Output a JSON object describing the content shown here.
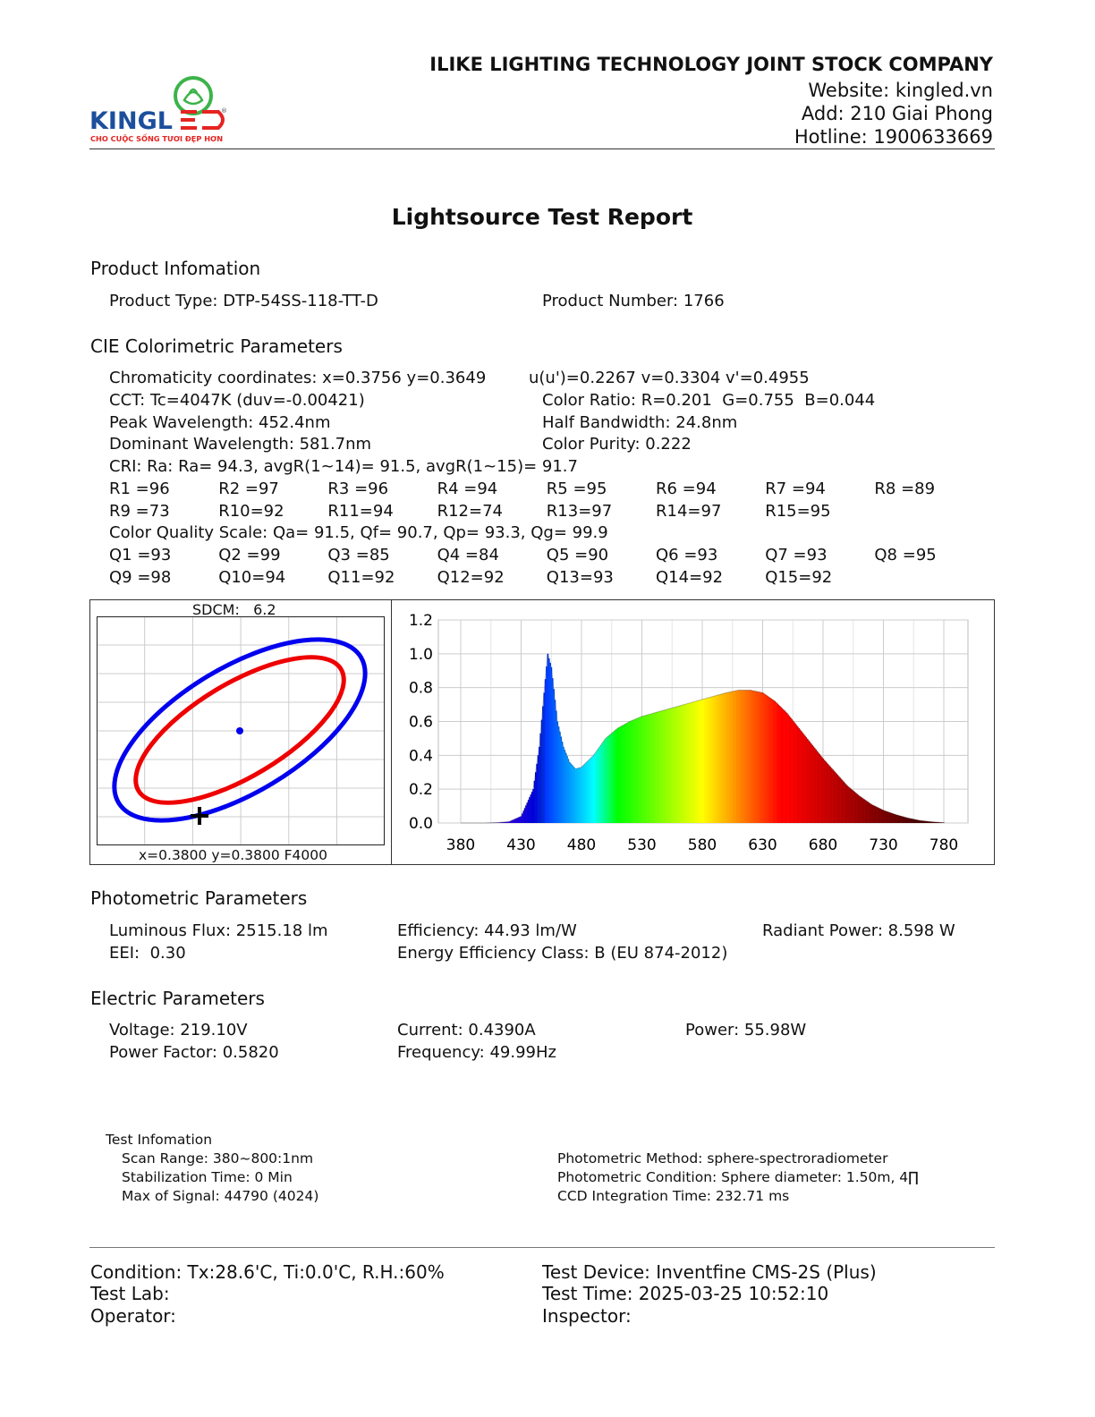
{
  "header": {
    "logo": {
      "brand": "KINGLED",
      "tagline": "CHO CUỘC SỐNG TƯƠI ĐẸP HƠN"
    },
    "company": "ILIKE LIGHTING TECHNOLOGY JOINT STOCK COMPANY",
    "website": "Website: kingled.vn",
    "address": "Add: 210 Giai Phong",
    "hotline": "Hotline: 1900633669"
  },
  "title": "Lightsource Test Report",
  "product": {
    "heading": "Product Infomation",
    "type": "Product Type: DTP-54SS-118-TT-D",
    "number": "Product Number: 1766"
  },
  "cie": {
    "heading": "CIE Colorimetric Parameters",
    "chromaticity": "Chromaticity coordinates: x=0.3756 y=0.3649",
    "uv": "u(u')=0.2267 v=0.3304 v'=0.4955",
    "cct": "CCT: Tc=4047K (duv=-0.00421)",
    "color_ratio": "Color Ratio: R=0.201  G=0.755  B=0.044",
    "peak": "Peak Wavelength: 452.4nm",
    "half_bandwidth": "Half Bandwidth: 24.8nm",
    "dominant": "Dominant Wavelength: 581.7nm",
    "purity": "Color Purity: 0.222",
    "cri": "CRI: Ra: Ra= 94.3, avgR(1~14)= 91.5, avgR(1~15)= 91.7",
    "r_row1": [
      "R1 =96",
      "R2 =97",
      "R3 =96",
      "R4 =94",
      "R5 =95",
      "R6 =94",
      "R7 =94",
      "R8 =89"
    ],
    "r_row2": [
      "R9 =73",
      "R10=92",
      "R11=94",
      "R12=74",
      "R13=97",
      "R14=97",
      "R15=95"
    ],
    "cqs": "Color Quality Scale: Qa= 91.5, Qf= 90.7, Qp= 93.3, Qg= 99.9",
    "q_row1": [
      "Q1 =93",
      "Q2 =99",
      "Q3 =85",
      "Q4 =84",
      "Q5 =90",
      "Q6 =93",
      "Q7 =93",
      "Q8 =95"
    ],
    "q_row2": [
      "Q9 =98",
      "Q10=94",
      "Q11=92",
      "Q12=92",
      "Q13=93",
      "Q14=92",
      "Q15=92"
    ]
  },
  "sdcm_plot": {
    "title": "SDCM:   6.2",
    "footer": "x=0.3800 y=0.3800 F4000",
    "colors": {
      "outer": "#0000ee",
      "inner": "#ee0000",
      "point": "#0000ee",
      "marker": "#000000"
    }
  },
  "chart_data": {
    "type": "area",
    "title": "",
    "xlabel": "",
    "ylabel": "",
    "xlim": [
      380,
      780
    ],
    "ylim": [
      0,
      1.2
    ],
    "x_ticks": [
      "380",
      "430",
      "480",
      "530",
      "580",
      "630",
      "680",
      "730",
      "780"
    ],
    "y_ticks": [
      "0.0",
      "0.2",
      "0.4",
      "0.6",
      "0.8",
      "1.0",
      "1.2"
    ],
    "grid": true,
    "fill": "wavelength-colored",
    "x": [
      380,
      390,
      400,
      410,
      420,
      430,
      440,
      445,
      450,
      452,
      455,
      460,
      465,
      470,
      475,
      480,
      490,
      500,
      510,
      520,
      530,
      540,
      550,
      560,
      570,
      580,
      590,
      600,
      610,
      620,
      630,
      640,
      650,
      660,
      670,
      680,
      690,
      700,
      710,
      720,
      730,
      740,
      750,
      760,
      770,
      780
    ],
    "y": [
      0,
      0,
      0,
      0.002,
      0.008,
      0.04,
      0.2,
      0.45,
      0.85,
      1.0,
      0.92,
      0.6,
      0.45,
      0.36,
      0.32,
      0.33,
      0.4,
      0.5,
      0.56,
      0.6,
      0.63,
      0.65,
      0.67,
      0.69,
      0.71,
      0.73,
      0.75,
      0.77,
      0.785,
      0.785,
      0.77,
      0.72,
      0.65,
      0.56,
      0.47,
      0.38,
      0.3,
      0.22,
      0.16,
      0.11,
      0.075,
      0.05,
      0.03,
      0.015,
      0.007,
      0.002
    ]
  },
  "photometric": {
    "heading": "Photometric Parameters",
    "flux": "Luminous Flux: 2515.18 lm",
    "efficiency": "Efficiency: 44.93 lm/W",
    "radiant": "Radiant Power: 8.598 W",
    "eei": "EEI:  0.30",
    "class": "Energy Efficiency Class: B (EU 874-2012)"
  },
  "electric": {
    "heading": "Electric Parameters",
    "voltage": "Voltage: 219.10V",
    "current": "Current: 0.4390A",
    "power": "Power: 55.98W",
    "pf": "Power Factor: 0.5820",
    "frequency": "Frequency: 49.99Hz"
  },
  "test_info": {
    "heading": "Test Infomation",
    "scan": "Scan Range: 380~800:1nm",
    "stabilization": "Stabilization Time: 0 Min",
    "max_signal": "Max of Signal: 44790 (4024)",
    "method": "Photometric Method: sphere-spectroradiometer",
    "condition": "Photometric Condition: Sphere diameter: 1.50m, 4∏",
    "ccd": "CCD Integration Time: 232.71 ms"
  },
  "footer": {
    "condition": "Condition: Tx:28.6'C, Ti:0.0'C, R.H.:60%",
    "device": "Test Device: Inventfine CMS-2S (Plus)",
    "lab": "Test Lab:",
    "time": "Test Time: 2025-03-25 10:52:10",
    "operator": "Operator:",
    "inspector": "Inspector:"
  }
}
